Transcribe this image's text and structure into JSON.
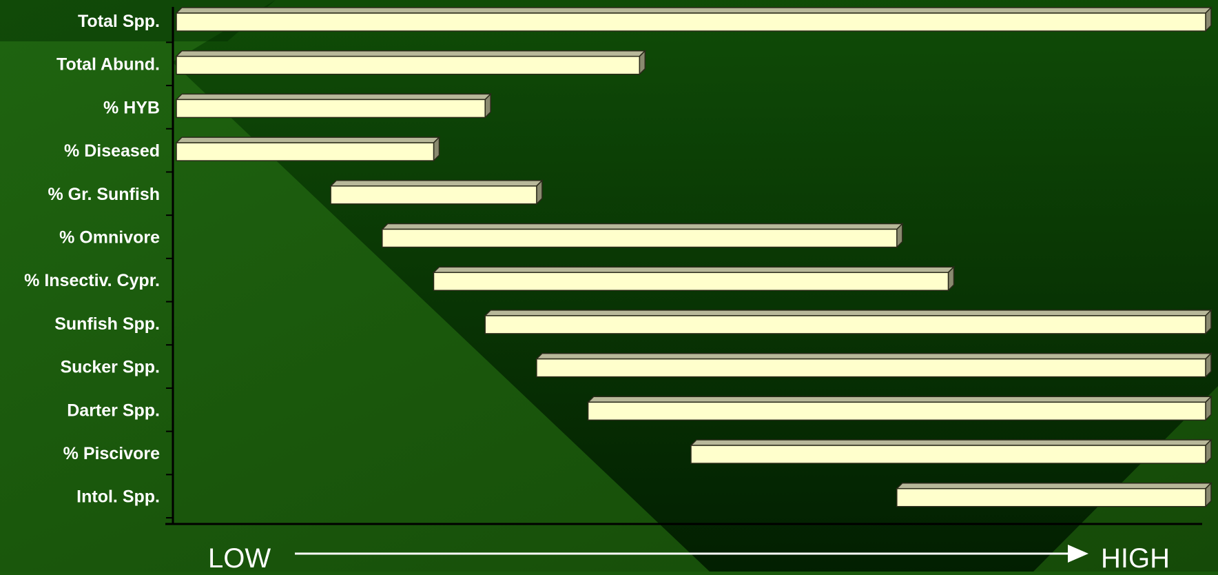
{
  "chart_data": {
    "type": "bar",
    "orientation": "horizontal-range",
    "categories": [
      "Total Spp.",
      "Total Abund.",
      "% HYB",
      "% Diseased",
      "% Gr. Sunfish",
      "% Omnivore",
      "% Insectiv. Cypr.",
      "Sunfish Spp.",
      "Sucker Spp.",
      "Darter Spp.",
      "% Piscivore",
      "Intol. Spp."
    ],
    "ranges": [
      [
        0,
        100
      ],
      [
        0,
        45
      ],
      [
        0,
        30
      ],
      [
        0,
        25
      ],
      [
        15,
        35
      ],
      [
        20,
        70
      ],
      [
        25,
        75
      ],
      [
        30,
        100
      ],
      [
        35,
        100
      ],
      [
        40,
        100
      ],
      [
        50,
        100
      ],
      [
        70,
        100
      ]
    ],
    "xlim": [
      0,
      100
    ],
    "x_axis": {
      "low_label": "LOW",
      "high_label": "HIGH"
    },
    "colors": {
      "bar_front": "#ffffcc",
      "bar_top": "#b8b89a",
      "bar_side": "#8a8a70",
      "bar_stroke": "#2a2a1a",
      "background_light": "#1a5a0c",
      "background_dark": "#002a00",
      "axis": "#000000",
      "text": "#ffffff"
    },
    "grid": false,
    "legend": "none"
  }
}
